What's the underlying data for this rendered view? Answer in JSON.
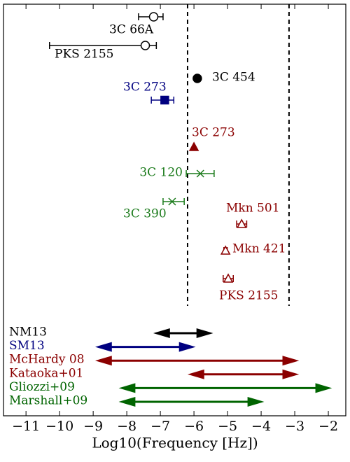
{
  "chart_data": {
    "type": "scatter",
    "xlabel": "Log10(Frequency [Hz])",
    "xlim": [
      -11.67,
      -1.48
    ],
    "xticks": [
      {
        "value": -11,
        "label": "−11"
      },
      {
        "value": -10,
        "label": "−10"
      },
      {
        "value": -9,
        "label": "−9"
      },
      {
        "value": -8,
        "label": "−8"
      },
      {
        "value": -7,
        "label": "−7"
      },
      {
        "value": -6,
        "label": "−6"
      },
      {
        "value": -5,
        "label": "−5"
      },
      {
        "value": -4,
        "label": "−4"
      },
      {
        "value": -3,
        "label": "−3"
      },
      {
        "value": -2,
        "label": "−2"
      }
    ],
    "points": [
      {
        "name": "3C 66A",
        "color": "#000000",
        "marker": "o",
        "filled": false,
        "x": -7.2,
        "xerr": [
          0.45,
          0.28
        ]
      },
      {
        "name": "PKS 2155",
        "color": "#000000",
        "marker": "o",
        "filled": false,
        "x": -7.45,
        "xerr": [
          2.85,
          0.33
        ]
      },
      {
        "name": "3C 454",
        "color": "#000000",
        "marker": "o",
        "filled": true,
        "x": -5.9
      },
      {
        "name": "3C 273",
        "color": "#000080",
        "marker": "s",
        "filled": true,
        "x": -6.87,
        "xerr": [
          0.4,
          0.27
        ]
      },
      {
        "name": "3C 273",
        "color": "#8b0000",
        "marker": "^",
        "filled": true,
        "x": -6.0
      },
      {
        "name": "3C 120",
        "color": "#1a7a1a",
        "marker": "x",
        "filled": false,
        "x": -5.81,
        "xerr": [
          0.42,
          0.41
        ]
      },
      {
        "name": "3C 390",
        "color": "#1a7a1a",
        "marker": "x",
        "filled": false,
        "x": -6.65,
        "xerr": [
          0.27,
          0.36
        ]
      },
      {
        "name": "Mkn 501",
        "color": "#8b0000",
        "marker": "^",
        "filled": false,
        "x": -4.58,
        "xerr": [
          0.15,
          0.15
        ]
      },
      {
        "name": "Mkn 421",
        "color": "#8b0000",
        "marker": "^",
        "filled": false,
        "x": -5.06,
        "xerr": [
          0.05,
          0.05
        ]
      },
      {
        "name": "PKS 2155",
        "color": "#8b0000",
        "marker": "^",
        "filled": false,
        "x": -4.98,
        "xerr": [
          0.15,
          0.15
        ]
      }
    ],
    "vlines": [
      -6.19,
      -3.17
    ],
    "ranges": [
      {
        "name": "NM13",
        "color": "#000000",
        "values": [
          -7.1,
          -5.54
        ]
      },
      {
        "name": "SM13",
        "color": "#000080",
        "values": [
          -8.83,
          -6.06
        ]
      },
      {
        "name": "McHardy 08",
        "color": "#8b0000",
        "values": [
          -8.83,
          -2.98
        ]
      },
      {
        "name": "Kataoka+01",
        "color": "#8b0000",
        "values": [
          -6.08,
          -2.98
        ]
      },
      {
        "name": "Gliozzi+09",
        "color": "#006400",
        "values": [
          -8.13,
          -2.0
        ]
      },
      {
        "name": "Marshall+09",
        "color": "#006400",
        "values": [
          -8.13,
          -4.02
        ]
      }
    ]
  }
}
